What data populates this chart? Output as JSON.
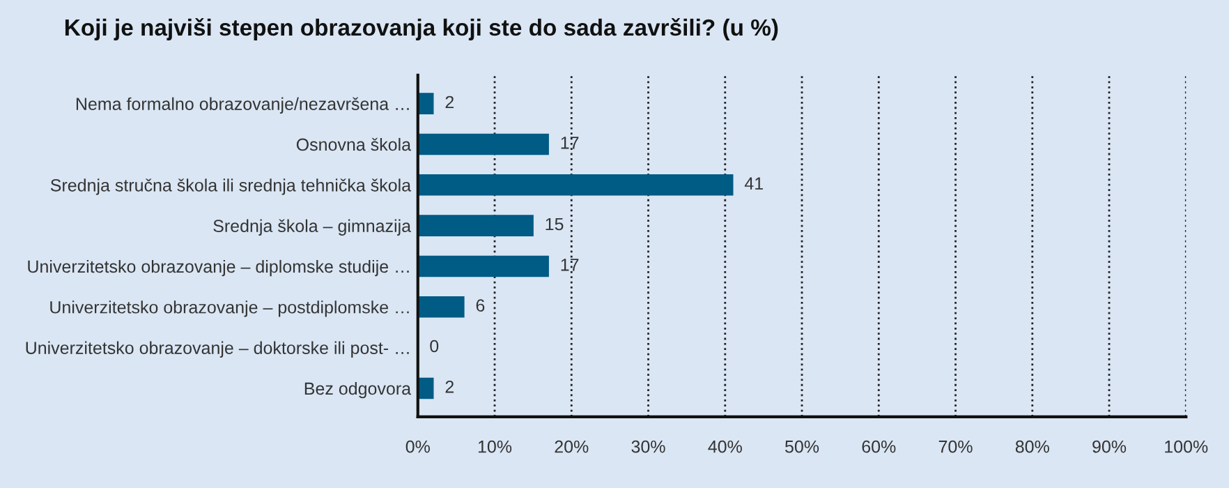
{
  "chart_data": {
    "type": "bar",
    "orientation": "horizontal",
    "title": "Koji je najviši stepen obrazovanja koji ste do sada završili? (u %)",
    "categories": [
      "Nema formalno obrazovanje/nezavršena …",
      "Osnovna škola",
      "Srednja stručna škola ili srednja tehnička škola",
      "Srednja škola – gimnazija",
      "Univerzitetsko obrazovanje – diplomske studije …",
      "Univerzitetsko obrazovanje – postdiplomske …",
      "Univerzitetsko obrazovanje – doktorske ili post- …",
      "Bez odgovora"
    ],
    "values": [
      2,
      17,
      41,
      15,
      17,
      6,
      0,
      2
    ],
    "color": "#005b85",
    "data_labels": true,
    "xlim": [
      0,
      100
    ],
    "xticks": [
      {
        "value": 0,
        "label": "0%"
      },
      {
        "value": 10,
        "label": "10%"
      },
      {
        "value": 20,
        "label": "20%"
      },
      {
        "value": 30,
        "label": "30%"
      },
      {
        "value": 40,
        "label": "40%"
      },
      {
        "value": 50,
        "label": "50%"
      },
      {
        "value": 60,
        "label": "60%"
      },
      {
        "value": 70,
        "label": "70%"
      },
      {
        "value": 80,
        "label": "80%"
      },
      {
        "value": 90,
        "label": "90%"
      },
      {
        "value": 100,
        "label": "100%"
      }
    ],
    "grid": "x"
  }
}
